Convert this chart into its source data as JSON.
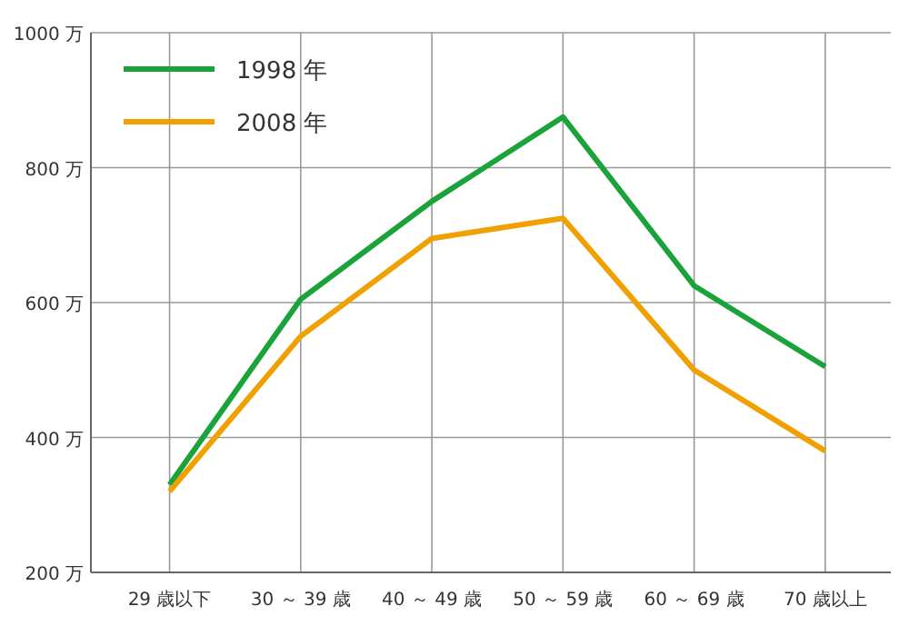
{
  "chart_data": {
    "type": "line",
    "categories": [
      "29 歳以下",
      "30 ～ 39 歳",
      "40 ～ 49 歳",
      "50 ～ 59 歳",
      "60 ～ 69 歳",
      "70 歳以上"
    ],
    "series": [
      {
        "name": "1998 年",
        "color": "#1aa33a",
        "values": [
          330,
          605,
          750,
          875,
          625,
          505
        ]
      },
      {
        "name": "2008 年",
        "color": "#f0a000",
        "values": [
          320,
          550,
          695,
          725,
          500,
          380
        ]
      }
    ],
    "ylim": [
      200,
      1000
    ],
    "yticks": [
      {
        "value": 200,
        "label": "200 万"
      },
      {
        "value": 400,
        "label": "400 万"
      },
      {
        "value": 600,
        "label": "600 万"
      },
      {
        "value": 800,
        "label": "800 万"
      },
      {
        "value": 1000,
        "label": "1000 万"
      }
    ],
    "grid": true,
    "legend": "top left",
    "marker": "none",
    "line_style": "solid"
  }
}
